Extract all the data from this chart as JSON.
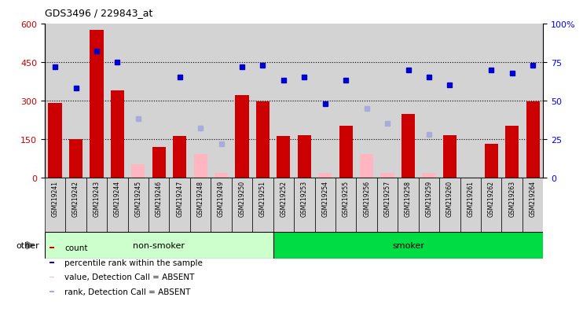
{
  "title": "GDS3496 / 229843_at",
  "samples": [
    "GSM219241",
    "GSM219242",
    "GSM219243",
    "GSM219244",
    "GSM219245",
    "GSM219246",
    "GSM219247",
    "GSM219248",
    "GSM219249",
    "GSM219250",
    "GSM219251",
    "GSM219252",
    "GSM219253",
    "GSM219254",
    "GSM219255",
    "GSM219256",
    "GSM219257",
    "GSM219258",
    "GSM219259",
    "GSM219260",
    "GSM219261",
    "GSM219262",
    "GSM219263",
    "GSM219264"
  ],
  "counts": [
    290,
    148,
    575,
    340,
    null,
    120,
    160,
    null,
    null,
    320,
    295,
    162,
    165,
    null,
    200,
    null,
    null,
    248,
    null,
    165,
    null,
    130,
    200,
    295
  ],
  "absent_values": [
    null,
    null,
    null,
    null,
    50,
    null,
    null,
    90,
    18,
    null,
    null,
    null,
    null,
    18,
    null,
    90,
    18,
    null,
    18,
    null,
    null,
    null,
    null,
    null
  ],
  "percentile_ranks": [
    72,
    58,
    82,
    75,
    null,
    null,
    65,
    null,
    null,
    72,
    73,
    63,
    65,
    48,
    63,
    null,
    null,
    70,
    65,
    60,
    null,
    70,
    68,
    73
  ],
  "absent_ranks": [
    null,
    null,
    null,
    null,
    38,
    null,
    null,
    32,
    22,
    null,
    null,
    null,
    null,
    null,
    null,
    45,
    35,
    null,
    28,
    null,
    null,
    null,
    null,
    null
  ],
  "groups": [
    "non-smoker",
    "non-smoker",
    "non-smoker",
    "non-smoker",
    "non-smoker",
    "non-smoker",
    "non-smoker",
    "non-smoker",
    "non-smoker",
    "non-smoker",
    "non-smoker",
    "smoker",
    "smoker",
    "smoker",
    "smoker",
    "smoker",
    "smoker",
    "smoker",
    "smoker",
    "smoker",
    "smoker",
    "smoker",
    "smoker",
    "smoker"
  ],
  "ylim_left": [
    0,
    600
  ],
  "ylim_right": [
    0,
    100
  ],
  "yticks_left": [
    0,
    150,
    300,
    450,
    600
  ],
  "yticks_right": [
    0,
    25,
    50,
    75,
    100
  ],
  "bar_color": "#cc0000",
  "absent_bar_color": "#ffb6c1",
  "rank_color": "#0000cc",
  "absent_rank_color": "#aaaadd",
  "non_smoker_color": "#ccffcc",
  "smoker_color": "#00dd44",
  "bg_color": "#d3d3d3",
  "non_smoker_count": 11,
  "legend_items": [
    {
      "label": "count",
      "color": "#cc0000"
    },
    {
      "label": "percentile rank within the sample",
      "color": "#0000cc"
    },
    {
      "label": "value, Detection Call = ABSENT",
      "color": "#ffb6c1"
    },
    {
      "label": "rank, Detection Call = ABSENT",
      "color": "#aaaadd"
    }
  ]
}
